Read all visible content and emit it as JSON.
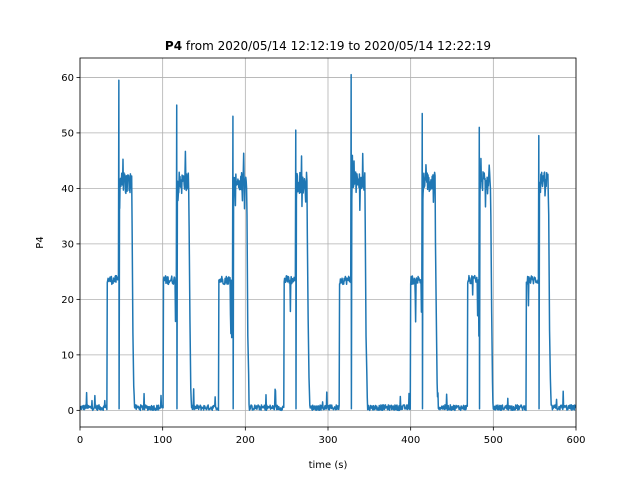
{
  "chart_data": {
    "type": "line",
    "title_bold": "P4",
    "title_rest": " from 2020/05/14 12:12:19 to 2020/05/14 12:22:19",
    "xlabel": "time (s)",
    "ylabel": "P4",
    "xlim": [
      0,
      600
    ],
    "ylim": [
      -3,
      63.5
    ],
    "xticks": [
      0,
      100,
      200,
      300,
      400,
      500,
      600
    ],
    "yticks": [
      0,
      10,
      20,
      30,
      40,
      50,
      60
    ],
    "grid": true,
    "line_color": "#1f77b4",
    "series": [
      {
        "cycles": [
          {
            "start": 0,
            "rampStart": 33,
            "ramp2": 35,
            "spike": 47,
            "spikeVal": 59.5,
            "highEnd": 63,
            "end": 66
          },
          {
            "start": 66,
            "rampStart": 101,
            "ramp2": 103,
            "spike": 117,
            "spikeVal": 55,
            "highEnd": 132,
            "end": 135
          },
          {
            "start": 135,
            "rampStart": 168,
            "ramp2": 170,
            "spike": 185,
            "spikeVal": 53,
            "highEnd": 202,
            "end": 205
          },
          {
            "start": 205,
            "rampStart": 247,
            "ramp2": 249,
            "spike": 261,
            "spikeVal": 50.5,
            "highEnd": 275,
            "end": 278
          },
          {
            "start": 278,
            "rampStart": 314,
            "ramp2": 316,
            "spike": 328,
            "spikeVal": 60.5,
            "highEnd": 345,
            "end": 348
          },
          {
            "start": 348,
            "rampStart": 400,
            "ramp2": 402,
            "spike": 414,
            "spikeVal": 53.5,
            "highEnd": 430,
            "end": 433
          },
          {
            "start": 433,
            "rampStart": 469,
            "ramp2": 471,
            "spike": 483,
            "spikeVal": 51,
            "highEnd": 497,
            "end": 500
          },
          {
            "start": 500,
            "rampStart": 540,
            "ramp2": 542,
            "spike": 555,
            "spikeVal": 49.5,
            "highEnd": 567,
            "end": 570
          }
        ],
        "tail_end": 600,
        "low_level": 0.5,
        "mid_level": 23.5,
        "high_level": 41
      }
    ]
  }
}
